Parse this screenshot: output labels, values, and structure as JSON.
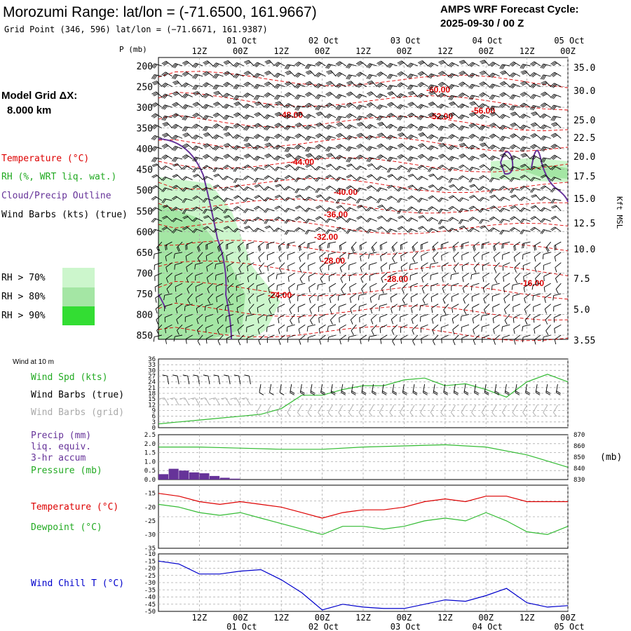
{
  "header": {
    "title": "Morozumi Range:  lat/lon = (-71.6500, 161.9667)",
    "grid_point": "Grid Point (346, 596) lat/lon = (−71.6671, 161.9387)",
    "cycle_label": "AMPS WRF Forecast Cycle:",
    "cycle_value": "2025-09-30 / 00  Z",
    "model_grid_label": "Model Grid ΔX:",
    "model_grid_value": "8.000 km"
  },
  "legend": {
    "temperature": "Temperature (°C)",
    "rh": "RH (%, WRT liq. wat.)",
    "cloud": "Cloud/Precip Outline",
    "wind_barbs": "Wind Barbs (kts) (true)",
    "rh70": "RH > 70%",
    "rh80": "RH > 80%",
    "rh90": "RH > 90%",
    "pressure_unit": "P (mb)",
    "kft_label": "Kft MSL"
  },
  "colors": {
    "temp": "#dd0000",
    "rh70": "#ccf6cc",
    "rh80": "#a4e6a4",
    "rh90": "#33dd33",
    "cloud": "#663399",
    "wind": "#33bb33",
    "precip": "#663399",
    "dew": "#33bb33",
    "chill": "#0000cc",
    "grid": "#aaaaaa"
  },
  "time_axis": {
    "labels": [
      "12Z",
      "00Z",
      "12Z",
      "00Z",
      "12Z",
      "00Z",
      "12Z",
      "00Z",
      "12Z",
      "00Z"
    ],
    "dates": [
      "01 Oct",
      "02 Oct",
      "03 Oct",
      "04 Oct",
      "05 Oct"
    ]
  },
  "chart_data": [
    {
      "type": "contour",
      "title": "Upper-air time-height cross section",
      "pressure_levels": [
        200,
        250,
        300,
        350,
        400,
        450,
        500,
        550,
        600,
        650,
        700,
        750,
        800,
        850
      ],
      "pressure_labels": [
        "200",
        "250",
        "300",
        "350",
        "400",
        "450",
        "500",
        "550",
        "600",
        "650",
        "700",
        "750",
        "800",
        "850"
      ],
      "height_kft_labels": [
        "35.0",
        "30.0",
        "25.0",
        "22.5",
        "20.0",
        "17.5",
        "15.0",
        "12.5",
        "10.0",
        "7.5",
        "5.0",
        "3.55"
      ],
      "temperature_labels": [
        "-60.00",
        "-56.00",
        "-52.00",
        "-48.00",
        "-44.00",
        "-40.00",
        "-36.00",
        "-32.00",
        "-28.00",
        "-28.00",
        "-24.00",
        "-16.00"
      ]
    },
    {
      "type": "line",
      "title": "Wind at 10 m",
      "labels": {
        "spd": "Wind Spd (kts)",
        "true": "Wind Barbs (true)",
        "grid": "Wind Barbs (grid)"
      },
      "yticks": [
        "36",
        "33",
        "30",
        "27",
        "24",
        "21",
        "18",
        "15",
        "12",
        "9",
        "6",
        "3",
        "0"
      ],
      "ylim": [
        0,
        36
      ],
      "x_hours": [
        0,
        6,
        12,
        18,
        24,
        30,
        36,
        42,
        48,
        54,
        60,
        66,
        72,
        78,
        84,
        90,
        96,
        102,
        108,
        114,
        120
      ],
      "values": [
        2,
        3,
        4,
        5,
        6,
        7,
        10,
        17,
        17,
        20,
        22,
        22,
        25,
        26,
        22,
        23,
        20,
        16,
        24,
        28,
        24
      ]
    },
    {
      "type": "bar+line",
      "title": "Precip and pressure",
      "labels": {
        "precip": "Precip (mm)",
        "liq": "liq. equiv.",
        "accum": "3-hr accum",
        "pressure": "Pressure (mb)",
        "mb": "(mb)"
      },
      "precip_yticks": [
        "2.5",
        "2.0",
        "1.5",
        "1.0",
        "0.5",
        "0.0"
      ],
      "precip_ylim": [
        0,
        2.5
      ],
      "pressure_yticks": [
        "870",
        "860",
        "850",
        "840",
        "830"
      ],
      "pressure_ylim": [
        830,
        870
      ],
      "precip_x_hours": [
        3,
        6,
        9,
        12,
        15,
        18,
        21,
        24
      ],
      "precip_values": [
        0.3,
        0.6,
        0.5,
        0.4,
        0.35,
        0.2,
        0.1,
        0.05
      ],
      "pressure_x_hours": [
        0,
        12,
        24,
        36,
        48,
        60,
        72,
        84,
        96,
        108,
        120
      ],
      "pressure_values": [
        859,
        859,
        858,
        857,
        857,
        859,
        860,
        861,
        859,
        852,
        841
      ]
    },
    {
      "type": "line",
      "title": "Temperature and dewpoint",
      "labels": {
        "temp": "Temperature (°C)",
        "dew": "Dewpoint (°C)"
      },
      "yticks": [
        "-15",
        "-20",
        "-25",
        "-30",
        "-35"
      ],
      "ylim": [
        -35,
        -12
      ],
      "x_hours": [
        0,
        6,
        12,
        18,
        24,
        30,
        36,
        42,
        48,
        54,
        60,
        66,
        72,
        78,
        84,
        90,
        96,
        102,
        108,
        114,
        120
      ],
      "temp_values": [
        -15,
        -16,
        -18,
        -19,
        -18,
        -19,
        -20,
        -22,
        -24,
        -22,
        -21,
        -21,
        -20,
        -18,
        -17,
        -18,
        -16,
        -16,
        -18,
        -18,
        -18
      ],
      "dew_values": [
        -19,
        -20,
        -22,
        -23,
        -22,
        -24,
        -26,
        -28,
        -30,
        -27,
        -27,
        -28,
        -27,
        -25,
        -24,
        -25,
        -22,
        -25,
        -29,
        -30,
        -27
      ]
    },
    {
      "type": "line",
      "title": "Wind chill",
      "labels": {
        "chill": "Wind Chill T (°C)"
      },
      "yticks": [
        "-10",
        "-15",
        "-20",
        "-25",
        "-30",
        "-35",
        "-40",
        "-45",
        "-50"
      ],
      "ylim": [
        -50,
        -10
      ],
      "x_hours": [
        0,
        6,
        12,
        18,
        24,
        30,
        36,
        42,
        48,
        54,
        60,
        66,
        72,
        78,
        84,
        90,
        96,
        102,
        108,
        114,
        120
      ],
      "values": [
        -15,
        -17,
        -24,
        -24,
        -22,
        -21,
        -28,
        -37,
        -49,
        -45,
        -47,
        -48,
        -48,
        -45,
        -42,
        -43,
        -39,
        -34,
        -44,
        -47,
        -46
      ]
    }
  ]
}
